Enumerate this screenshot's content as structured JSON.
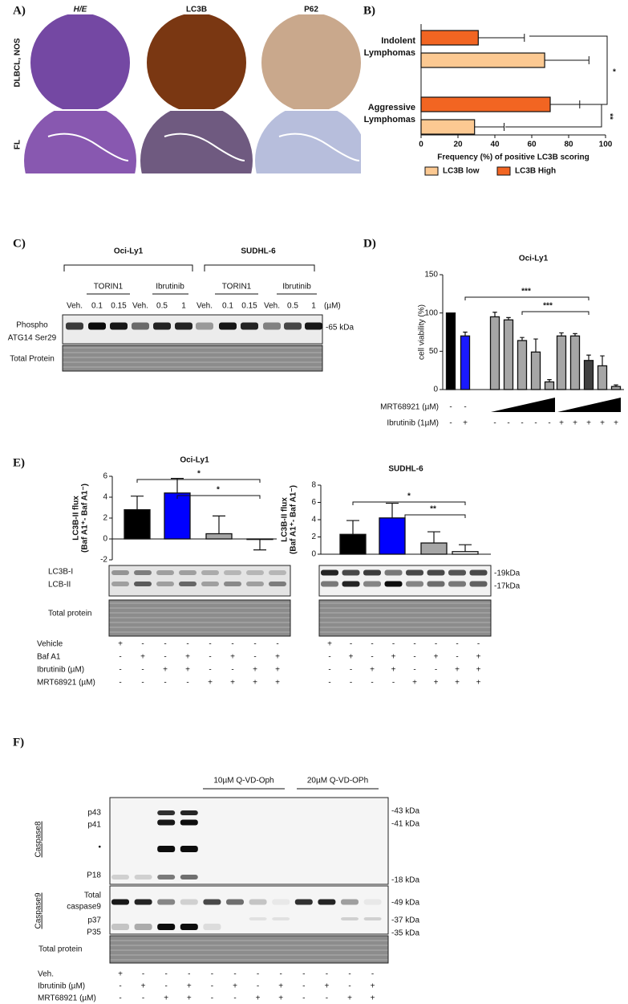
{
  "figure": {
    "panel_labels": [
      "A)",
      "B)",
      "C)",
      "D)",
      "E)",
      "F)"
    ],
    "A": {
      "columns": [
        "H/E",
        "LC3B",
        "P62"
      ],
      "rows": [
        "DLBCL, NOS",
        "FL"
      ]
    },
    "C": {
      "cell_lines": [
        "Oci-Ly1",
        "SUDHL-6"
      ],
      "treatments": [
        "TORIN1",
        "Ibrutinib",
        "TORIN1",
        "Ibrutinib"
      ],
      "lanes": [
        "Veh.",
        "0.1",
        "0.15",
        "Veh.",
        "0.5",
        "1",
        "Veh.",
        "0.1",
        "0.15",
        "Veh.",
        "0.5",
        "1"
      ],
      "unit": "(µM)",
      "blot_label": [
        "Phospho",
        "ATG14 Ser29"
      ],
      "size": "-65 kDa",
      "loading": "Total Protein"
    },
    "D": {
      "row_labels": [
        "MRT68921 (µM)",
        "Ibrutinib   (1µM)"
      ],
      "mrt_signs": [
        "-",
        "-"
      ],
      "ibrutinib_signs": [
        "-",
        "+",
        "-",
        "-",
        "-",
        "-",
        "-",
        "+",
        "+",
        "+",
        "+",
        "+"
      ]
    },
    "E": {
      "bands": [
        "LC3B-I",
        "LCB-II"
      ],
      "sizes": [
        "-19kDa",
        "-17kDa"
      ],
      "loading": "Total protein",
      "conditions": [
        {
          "label": "Vehicle",
          "left": [
            "+",
            "-",
            "-",
            "-",
            "-",
            "-",
            "-",
            "-"
          ],
          "right": [
            "+",
            "-",
            "-",
            "-",
            "-",
            "-",
            "-",
            "-"
          ]
        },
        {
          "label": "Baf A1",
          "left": [
            "-",
            "+",
            "-",
            "+",
            "-",
            "+",
            "-",
            "+"
          ],
          "right": [
            "-",
            "+",
            "-",
            "+",
            "-",
            "+",
            "-",
            "+"
          ]
        },
        {
          "label": "Ibrutinib (µM)",
          "left": [
            "-",
            "-",
            "+",
            "+",
            "-",
            "-",
            "+",
            "+"
          ],
          "right": [
            "-",
            "-",
            "+",
            "+",
            "-",
            "-",
            "+",
            "+"
          ]
        },
        {
          "label": "MRT68921 (µM)",
          "left": [
            "-",
            "-",
            "-",
            "-",
            "+",
            "+",
            "+",
            "+"
          ],
          "right": [
            "-",
            "-",
            "-",
            "-",
            "+",
            "+",
            "+",
            "+"
          ]
        }
      ]
    },
    "F": {
      "groups": [
        "10µM Q-VD-Oph",
        "20µM Q-VD-OPh"
      ],
      "blots": [
        "Caspase8",
        "Caspase9"
      ],
      "bands": [
        "p43",
        "p41",
        "•",
        "P18",
        "Total",
        "caspase9",
        "p37",
        "P35"
      ],
      "sizes": [
        "-43 kDa",
        "-41 kDa",
        "-18 kDa",
        "-49 kDa",
        "-37 kDa",
        "-35 kDa"
      ],
      "loading": "Total protein",
      "conditions": [
        {
          "label": "Veh.",
          "signs": [
            "+",
            "-",
            "-",
            "-",
            "-",
            "-",
            "-",
            "-",
            "-",
            "-",
            "-",
            "-"
          ]
        },
        {
          "label": "Ibrutinib (µM)",
          "signs": [
            "-",
            "+",
            "-",
            "+",
            "-",
            "+",
            "-",
            "+",
            "-",
            "+",
            "-",
            "+"
          ]
        },
        {
          "label": "MRT68921 (µM)",
          "signs": [
            "-",
            "-",
            "+",
            "+",
            "-",
            "-",
            "+",
            "+",
            "-",
            "-",
            "+",
            "+"
          ]
        }
      ]
    }
  },
  "chart_data": [
    {
      "type": "hbar",
      "categories": [
        "Indolent Lymphomas",
        "Aggressive Lymphomas"
      ],
      "series": [
        {
          "name": "LC3B low",
          "color": "#fcc992",
          "values": [
            67,
            29
          ],
          "errors": [
            24,
            16
          ]
        },
        {
          "name": "LC3B High",
          "color": "#f26522",
          "values": [
            31,
            70
          ],
          "errors": [
            25,
            16
          ]
        }
      ],
      "xlabel": "Frequency (%) of positive LC3B scoring",
      "xlim": [
        0,
        100
      ],
      "xticks": [
        0,
        20,
        40,
        60,
        80,
        100
      ],
      "annotations": [
        "*",
        "**"
      ]
    },
    {
      "type": "bar",
      "title": "Oci-Ly1",
      "ylabel": [
        "cell viability (%)"
      ],
      "categories": [
        null,
        null,
        null,
        null,
        null,
        null,
        null,
        null,
        null,
        null,
        null,
        null
      ],
      "values": [
        100,
        70,
        95,
        91,
        64,
        49,
        10,
        70,
        70,
        38,
        31,
        4
      ],
      "errors": [
        null,
        5,
        6,
        3,
        4,
        17,
        3,
        4,
        3,
        7,
        13,
        2
      ],
      "colors": [
        "#000000",
        "#1a1aff",
        "#a6a6a6",
        "#a6a6a6",
        "#a6a6a6",
        "#a6a6a6",
        "#a6a6a6",
        "#a6a6a6",
        "#a6a6a6",
        "#404040",
        "#a6a6a6",
        "#a6a6a6"
      ],
      "ylim": [
        0,
        150
      ],
      "yticks": [
        0,
        50,
        100,
        150
      ],
      "annotations": [
        "***",
        "***"
      ]
    },
    {
      "type": "bar",
      "title": "Oci-Ly1",
      "ylabel": [
        "LC3B-II flux",
        "(Baf A1⁺- Baf A1⁻)"
      ],
      "categories": [
        null,
        null,
        null,
        null
      ],
      "values": [
        2.8,
        4.4,
        0.5,
        -0.05
      ],
      "errors": [
        1.3,
        1.4,
        1.7,
        1.0
      ],
      "colors": [
        "#000000",
        "#0000ff",
        "#a6a6a6",
        "#ffffff"
      ],
      "ylim": [
        -2,
        6
      ],
      "yticks": [
        -2,
        0,
        2,
        4,
        6
      ],
      "annotations": [
        "*",
        "*"
      ]
    },
    {
      "type": "bar",
      "title": "SUDHL-6",
      "ylabel": [
        "LC3B-II flux",
        "(Baf A1⁺- Baf A1⁻)"
      ],
      "categories": [
        null,
        null,
        null,
        null
      ],
      "values": [
        2.3,
        4.2,
        1.3,
        0.3
      ],
      "errors": [
        1.6,
        1.7,
        1.3,
        0.8
      ],
      "colors": [
        "#000000",
        "#0000ff",
        "#a6a6a6",
        "#ffffff"
      ],
      "ylim": [
        0,
        8
      ],
      "yticks": [
        0,
        2,
        4,
        6,
        8
      ],
      "annotations": [
        "*",
        "**"
      ]
    }
  ]
}
